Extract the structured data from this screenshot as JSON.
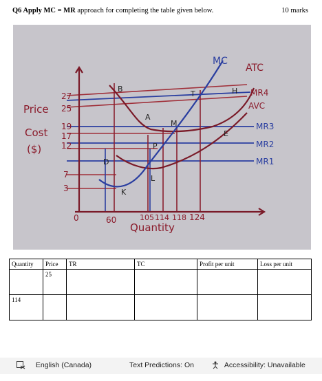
{
  "question": {
    "number": "Q6",
    "bold": "Apply MC = MR",
    "rest": " approach for completing the table given below.",
    "marks": "10 marks"
  },
  "graph": {
    "y_axis_label": [
      "Price",
      "Cost",
      "($)"
    ],
    "y_ticks": [
      "27",
      "25",
      "19",
      "17",
      "12",
      "7",
      "3"
    ],
    "origin": "0",
    "x_ticks": [
      "60",
      "105",
      "114",
      "118",
      "124"
    ],
    "x_axis_label": "Quantity",
    "curve_labels": {
      "mc": "MC",
      "atc": "ATC",
      "avc": "AVC"
    },
    "mr_labels": [
      "MR4",
      "MR3",
      "MR2",
      "MR1"
    ],
    "point_labels": [
      "B",
      "T",
      "H",
      "A",
      "M",
      "P",
      "E",
      "D",
      "L",
      "K"
    ]
  },
  "table": {
    "headers": [
      "Quantity",
      "Price",
      "TR",
      "TC",
      "Profit per unit",
      "Loss per unit"
    ],
    "rows": [
      [
        "",
        "25",
        "",
        "",
        "",
        ""
      ],
      [
        "114",
        "",
        "",
        "",
        "",
        ""
      ]
    ]
  },
  "statusbar": {
    "language": "English (Canada)",
    "text_predictions": "Text Predictions: On",
    "accessibility": "Accessibility: Unavailable"
  }
}
